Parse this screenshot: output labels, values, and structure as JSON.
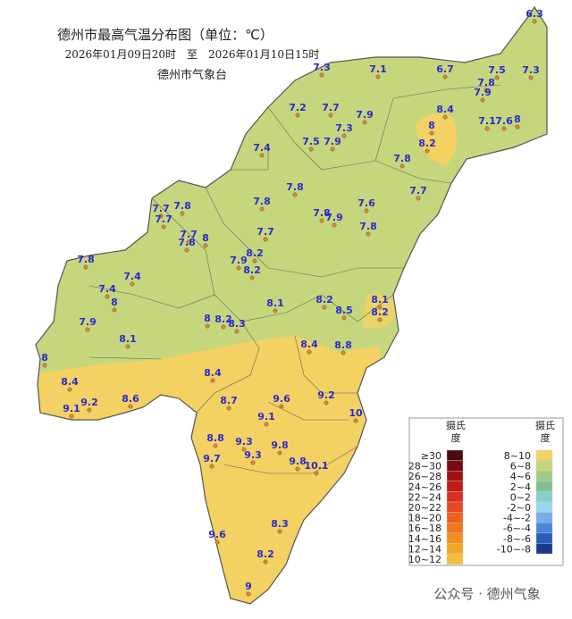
{
  "header": {
    "title": "德州市最高气温分布图（单位：℃）",
    "period": "2026年01月09日20时　至　2026年01月10日15时",
    "issuer": "德州市气象台"
  },
  "stations": [
    6.3,
    7.3,
    7.1,
    6.7,
    7.5,
    7.3,
    7.8,
    7.9,
    7.2,
    7.7,
    7.9,
    8.4,
    7.3,
    8,
    7.1,
    7.6,
    8,
    7.5,
    7.9,
    8.2,
    7.4,
    7.8,
    7.8,
    7.6,
    7.7,
    7.8,
    7.7,
    7.8,
    7.7,
    7.8,
    7.9,
    7.8,
    7.7,
    7.7,
    8,
    7.8,
    8.2,
    7.9,
    8.2,
    7.8,
    7.4,
    7.4,
    8,
    8.2,
    8.1,
    8.1,
    8.2,
    8.5,
    7.9,
    8,
    8.2,
    8.3,
    8.1,
    8.4,
    8.8,
    8,
    8.4,
    8.4,
    8.7,
    9.2,
    9.1,
    8.6,
    9.6,
    9.2,
    10,
    9.1,
    8.8,
    9.3,
    9.8,
    9.7,
    9.3,
    9.8,
    10.1,
    8.3,
    9.6,
    8.2,
    9
  ],
  "legend": {
    "unit_top": "摄氏",
    "unit_bottom": "度",
    "left": [
      {
        "label": "≥30",
        "color": "#4a0a12"
      },
      {
        "label": "28~30",
        "color": "#780c14"
      },
      {
        "label": "26~28",
        "color": "#a01212"
      },
      {
        "label": "24~26",
        "color": "#c41a18"
      },
      {
        "label": "22~24",
        "color": "#da2e1e"
      },
      {
        "label": "20~22",
        "color": "#e64820"
      },
      {
        "label": "18~20",
        "color": "#ec6020"
      },
      {
        "label": "16~18",
        "color": "#f07820"
      },
      {
        "label": "14~16",
        "color": "#f48f1e"
      },
      {
        "label": "12~14",
        "color": "#f6a626"
      },
      {
        "label": "10~12",
        "color": "#f7bd3e"
      }
    ],
    "right": [
      {
        "label": "8~10",
        "color": "#f3d162"
      },
      {
        "label": "6~8",
        "color": "#c6d67c"
      },
      {
        "label": "4~6",
        "color": "#9dcc84"
      },
      {
        "label": "2~4",
        "color": "#7fc292"
      },
      {
        "label": "0~2",
        "color": "#86cfc6"
      },
      {
        "label": "-2~0",
        "color": "#9dd5ee"
      },
      {
        "label": "-4~-2",
        "color": "#78ade6"
      },
      {
        "label": "-6~-4",
        "color": "#4a86da"
      },
      {
        "label": "-8~-6",
        "color": "#2a5cc0"
      },
      {
        "label": "-10~-8",
        "color": "#1a3890"
      }
    ]
  },
  "watermark": "公众号 · 德州气象"
}
